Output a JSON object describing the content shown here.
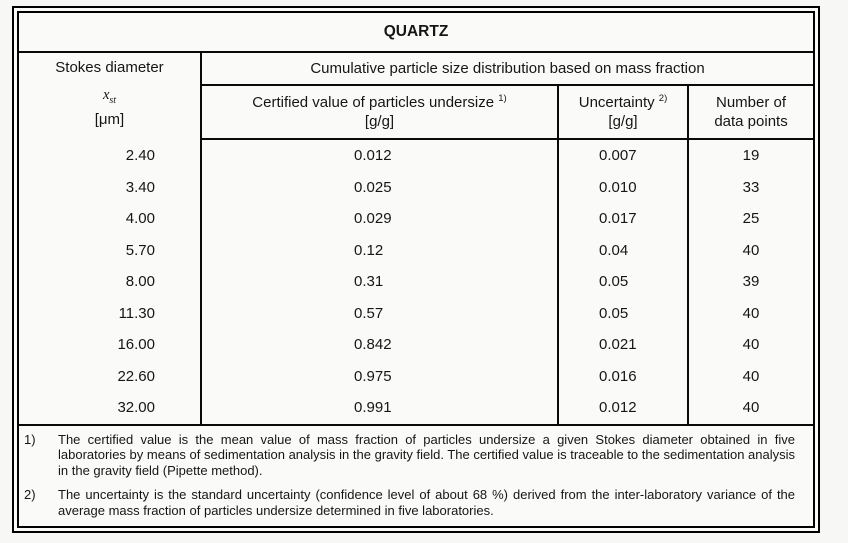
{
  "table": {
    "title": "QUARTZ",
    "header": {
      "stokes_label": "Stokes diameter",
      "stokes_symbol_base": "x",
      "stokes_symbol_sub": "st",
      "stokes_unit": "[μm]",
      "span_label": "Cumulative particle size distribution based on mass fraction",
      "certified_label": "Certified value of particles undersize",
      "certified_ref": "1)",
      "certified_unit": "[g/g]",
      "uncertainty_label": "Uncertainty",
      "uncertainty_ref": "2)",
      "uncertainty_unit": "[g/g]",
      "count_line1": "Number of",
      "count_line2": "data points"
    },
    "rows": [
      {
        "x": "2.40",
        "certified": "0.012",
        "uncertainty": "0.007",
        "n": "19"
      },
      {
        "x": "3.40",
        "certified": "0.025",
        "uncertainty": "0.010",
        "n": "33"
      },
      {
        "x": "4.00",
        "certified": "0.029",
        "uncertainty": "0.017",
        "n": "25"
      },
      {
        "x": "5.70",
        "certified": "0.12",
        "uncertainty": "0.04",
        "n": "40"
      },
      {
        "x": "8.00",
        "certified": "0.31",
        "uncertainty": "0.05",
        "n": "39"
      },
      {
        "x": "11.30",
        "certified": "0.57",
        "uncertainty": "0.05",
        "n": "40"
      },
      {
        "x": "16.00",
        "certified": "0.842",
        "uncertainty": "0.021",
        "n": "40"
      },
      {
        "x": "22.60",
        "certified": "0.975",
        "uncertainty": "0.016",
        "n": "40"
      },
      {
        "x": "32.00",
        "certified": "0.991",
        "uncertainty": "0.012",
        "n": "40"
      }
    ],
    "footnotes": [
      {
        "ref": "1)",
        "text": "The certified value is the mean value of mass fraction of particles undersize a given Stokes diameter obtained in five laboratories by means of sedimentation analysis in the gravity field. The certified value is traceable to the sedimentation analysis in the gravity field (Pipette method)."
      },
      {
        "ref": "2)",
        "text": "The uncertainty is the standard uncertainty (confidence level of about 68 %) derived from the inter-laboratory variance of the average mass fraction of particles undersize determined in five laboratories."
      }
    ]
  }
}
